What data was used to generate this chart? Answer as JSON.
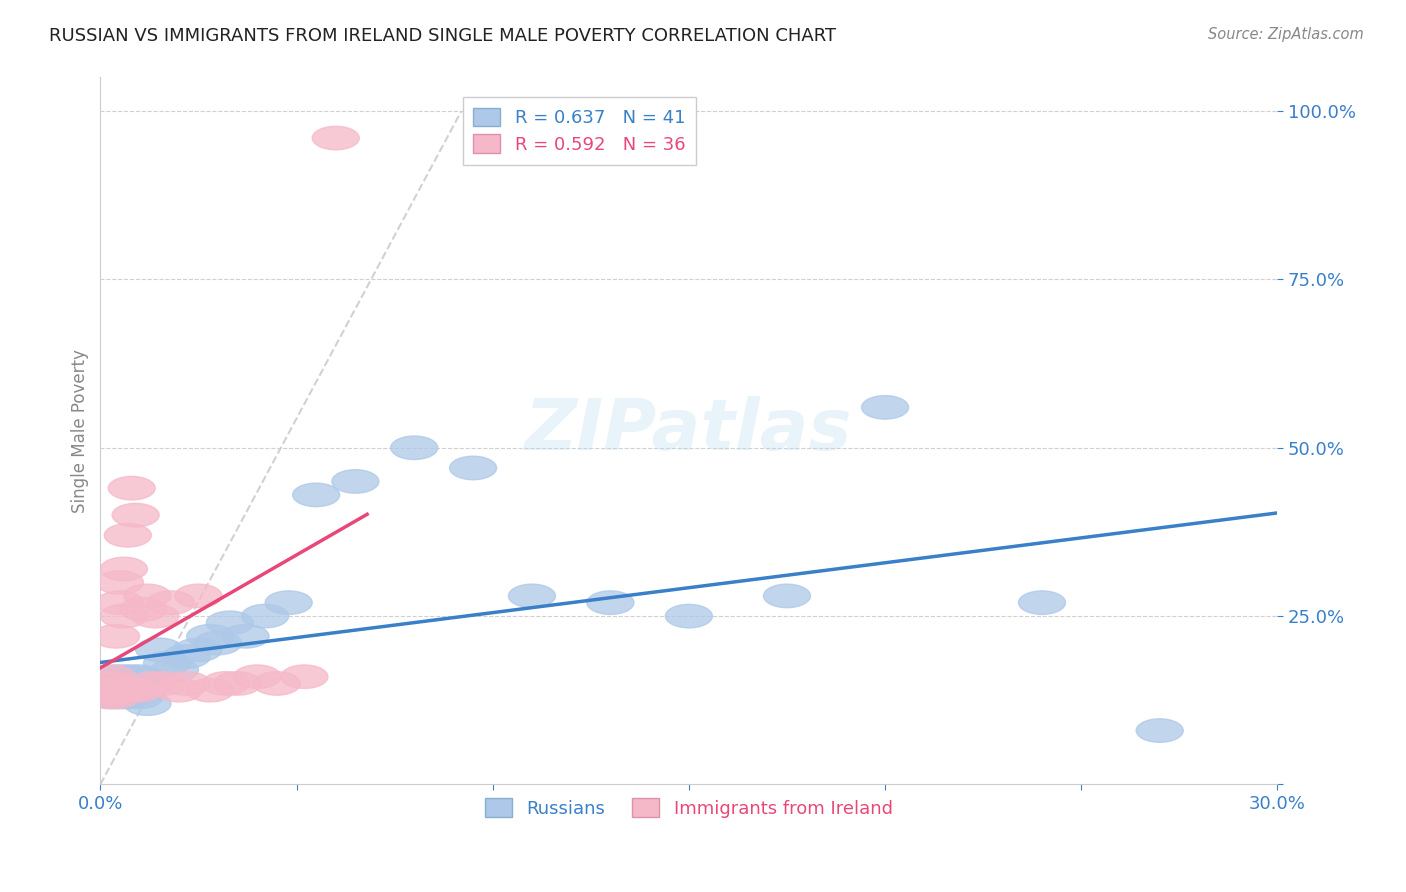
{
  "title": "RUSSIAN VS IMMIGRANTS FROM IRELAND SINGLE MALE POVERTY CORRELATION CHART",
  "source": "Source: ZipAtlas.com",
  "ylabel": "Single Male Poverty",
  "xlim": [
    0.0,
    0.3
  ],
  "ylim": [
    0.0,
    1.05
  ],
  "xticks": [
    0.0,
    0.05,
    0.1,
    0.15,
    0.2,
    0.25,
    0.3
  ],
  "xticklabels": [
    "0.0%",
    "",
    "",
    "",
    "",
    "",
    "30.0%"
  ],
  "ytick_positions": [
    0.0,
    0.25,
    0.5,
    0.75,
    1.0
  ],
  "ytick_labels": [
    "",
    "25.0%",
    "50.0%",
    "75.0%",
    "100.0%"
  ],
  "R_blue": 0.637,
  "N_blue": 41,
  "R_pink": 0.592,
  "N_pink": 36,
  "blue_color": "#adc8e8",
  "pink_color": "#f5b8c8",
  "blue_line_color": "#3a80c8",
  "pink_line_color": "#e84878",
  "blue_scatter_x": [
    0.002,
    0.003,
    0.003,
    0.004,
    0.004,
    0.005,
    0.005,
    0.006,
    0.006,
    0.007,
    0.007,
    0.008,
    0.008,
    0.009,
    0.01,
    0.01,
    0.011,
    0.012,
    0.013,
    0.015,
    0.017,
    0.019,
    0.022,
    0.025,
    0.028,
    0.03,
    0.033,
    0.037,
    0.042,
    0.048,
    0.055,
    0.065,
    0.08,
    0.095,
    0.11,
    0.13,
    0.15,
    0.175,
    0.2,
    0.24,
    0.27
  ],
  "blue_scatter_y": [
    0.14,
    0.15,
    0.13,
    0.16,
    0.14,
    0.15,
    0.13,
    0.16,
    0.14,
    0.15,
    0.13,
    0.14,
    0.16,
    0.15,
    0.13,
    0.16,
    0.14,
    0.12,
    0.15,
    0.2,
    0.18,
    0.17,
    0.19,
    0.2,
    0.22,
    0.21,
    0.24,
    0.22,
    0.25,
    0.27,
    0.43,
    0.45,
    0.5,
    0.47,
    0.28,
    0.27,
    0.25,
    0.28,
    0.56,
    0.27,
    0.08
  ],
  "pink_scatter_x": [
    0.001,
    0.002,
    0.002,
    0.003,
    0.003,
    0.004,
    0.004,
    0.004,
    0.005,
    0.005,
    0.005,
    0.006,
    0.006,
    0.006,
    0.007,
    0.007,
    0.008,
    0.008,
    0.009,
    0.01,
    0.011,
    0.012,
    0.013,
    0.014,
    0.016,
    0.018,
    0.02,
    0.022,
    0.025,
    0.028,
    0.032,
    0.035,
    0.04,
    0.045,
    0.052,
    0.06
  ],
  "pink_scatter_y": [
    0.14,
    0.13,
    0.15,
    0.14,
    0.16,
    0.13,
    0.15,
    0.22,
    0.14,
    0.3,
    0.27,
    0.14,
    0.25,
    0.32,
    0.14,
    0.37,
    0.14,
    0.44,
    0.4,
    0.14,
    0.26,
    0.28,
    0.15,
    0.25,
    0.15,
    0.27,
    0.14,
    0.15,
    0.28,
    0.14,
    0.15,
    0.15,
    0.16,
    0.15,
    0.16,
    0.96
  ],
  "watermark": "ZIPatlas",
  "ref_line_x": [
    0.0,
    0.1
  ],
  "ref_line_y": [
    0.0,
    1.0
  ]
}
